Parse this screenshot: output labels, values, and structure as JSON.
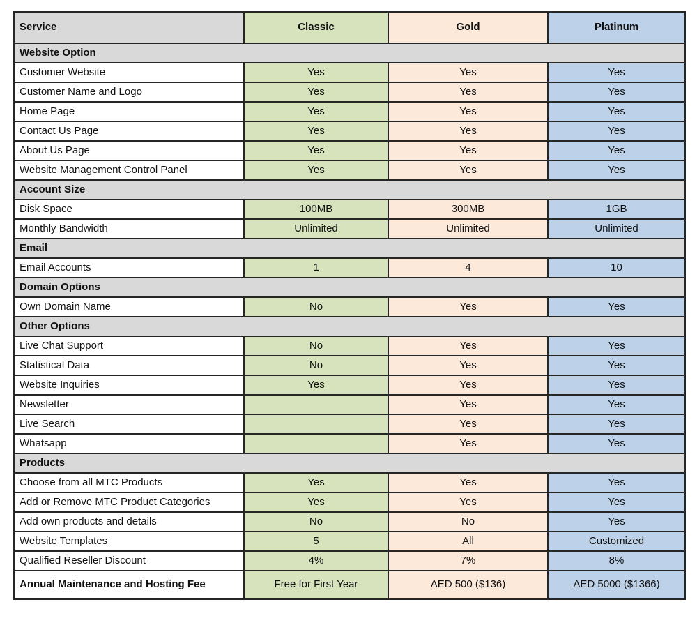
{
  "table": {
    "columns": [
      "Service",
      "Classic",
      "Gold",
      "Platinum"
    ],
    "colors": {
      "header_service_bg": "#d9d9d9",
      "section_bg": "#d9d9d9",
      "classic_bg": "#d6e3bc",
      "gold_bg": "#fce9da",
      "platinum_bg": "#bdd2e9",
      "border": "#262626",
      "text": "#111111"
    },
    "rows": [
      {
        "type": "section",
        "label": "Website Option"
      },
      {
        "type": "data",
        "label": "Customer Website",
        "classic": "Yes",
        "gold": "Yes",
        "platinum": "Yes"
      },
      {
        "type": "data",
        "label": "Customer Name and Logo",
        "classic": "Yes",
        "gold": "Yes",
        "platinum": "Yes"
      },
      {
        "type": "data",
        "label": "Home Page",
        "classic": "Yes",
        "gold": "Yes",
        "platinum": "Yes"
      },
      {
        "type": "data",
        "label": "Contact Us Page",
        "classic": "Yes",
        "gold": "Yes",
        "platinum": "Yes"
      },
      {
        "type": "data",
        "label": "About Us Page",
        "classic": "Yes",
        "gold": "Yes",
        "platinum": "Yes"
      },
      {
        "type": "data",
        "label": "Website Management Control Panel",
        "classic": "Yes",
        "gold": "Yes",
        "platinum": "Yes"
      },
      {
        "type": "section",
        "label": "Account Size"
      },
      {
        "type": "data",
        "label": "Disk Space",
        "classic": "100MB",
        "gold": "300MB",
        "platinum": "1GB"
      },
      {
        "type": "data",
        "label": "Monthly Bandwidth",
        "classic": "Unlimited",
        "gold": "Unlimited",
        "platinum": "Unlimited"
      },
      {
        "type": "section",
        "label": "Email"
      },
      {
        "type": "data",
        "label": "Email Accounts",
        "classic": "1",
        "gold": "4",
        "platinum": "10"
      },
      {
        "type": "section",
        "label": "Domain Options"
      },
      {
        "type": "data",
        "label": "Own Domain Name",
        "classic": "No",
        "gold": "Yes",
        "platinum": "Yes"
      },
      {
        "type": "section",
        "label": "Other Options"
      },
      {
        "type": "data",
        "label": "Live Chat Support",
        "classic": "No",
        "gold": "Yes",
        "platinum": "Yes"
      },
      {
        "type": "data",
        "label": "Statistical Data",
        "classic": "No",
        "gold": "Yes",
        "platinum": "Yes"
      },
      {
        "type": "data",
        "label": "Website Inquiries",
        "classic": "Yes",
        "gold": "Yes",
        "platinum": "Yes"
      },
      {
        "type": "data",
        "label": "Newsletter",
        "classic": "",
        "gold": "Yes",
        "platinum": "Yes"
      },
      {
        "type": "data",
        "label": "Live Search",
        "classic": "",
        "gold": "Yes",
        "platinum": "Yes"
      },
      {
        "type": "data",
        "label": "Whatsapp",
        "classic": "",
        "gold": "Yes",
        "platinum": "Yes"
      },
      {
        "type": "section",
        "label": "Products"
      },
      {
        "type": "data",
        "label": "Choose from all MTC Products",
        "classic": "Yes",
        "gold": "Yes",
        "platinum": "Yes"
      },
      {
        "type": "data",
        "label": "Add or Remove MTC Product Categories",
        "classic": "Yes",
        "gold": "Yes",
        "platinum": "Yes"
      },
      {
        "type": "data",
        "label": "Add own products and details",
        "classic": "No",
        "gold": "No",
        "platinum": "Yes"
      },
      {
        "type": "data",
        "label": "Website Templates",
        "classic": "5",
        "gold": "All",
        "platinum": "Customized"
      },
      {
        "type": "data",
        "label": "Qualified Reseller Discount",
        "classic": "4%",
        "gold": "7%",
        "platinum": "8%"
      },
      {
        "type": "footer",
        "label": "Annual Maintenance and Hosting Fee",
        "classic": "Free for First Year",
        "gold": "AED 500 ($136)",
        "platinum": "AED 5000 ($1366)"
      }
    ]
  }
}
